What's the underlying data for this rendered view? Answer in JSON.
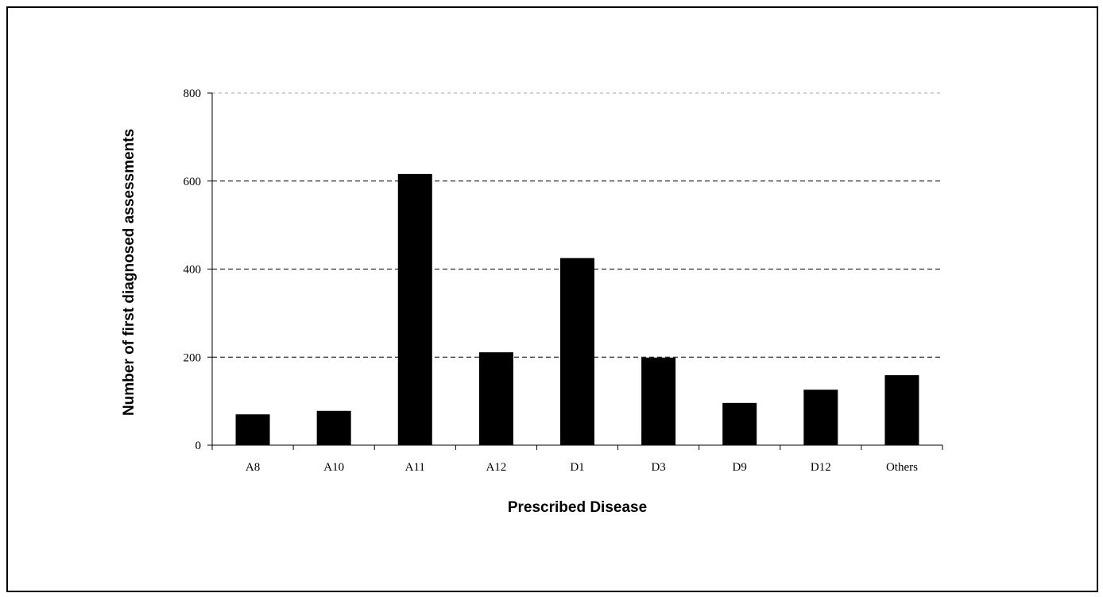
{
  "chart_data": {
    "type": "bar",
    "title": "",
    "xlabel": "Prescribed Disease",
    "ylabel": "Number of first diagnosed assessments",
    "categories": [
      "A8",
      "A10",
      "A11",
      "A12",
      "D1",
      "D3",
      "D9",
      "D12",
      "Others"
    ],
    "values": [
      70,
      78,
      616,
      211,
      425,
      199,
      96,
      126,
      159
    ],
    "ylim": [
      0,
      800
    ],
    "yticks": [
      0,
      200,
      400,
      600,
      800
    ],
    "grid": "horizontal-dashed",
    "legend": "none",
    "bar_color": "#000000"
  }
}
